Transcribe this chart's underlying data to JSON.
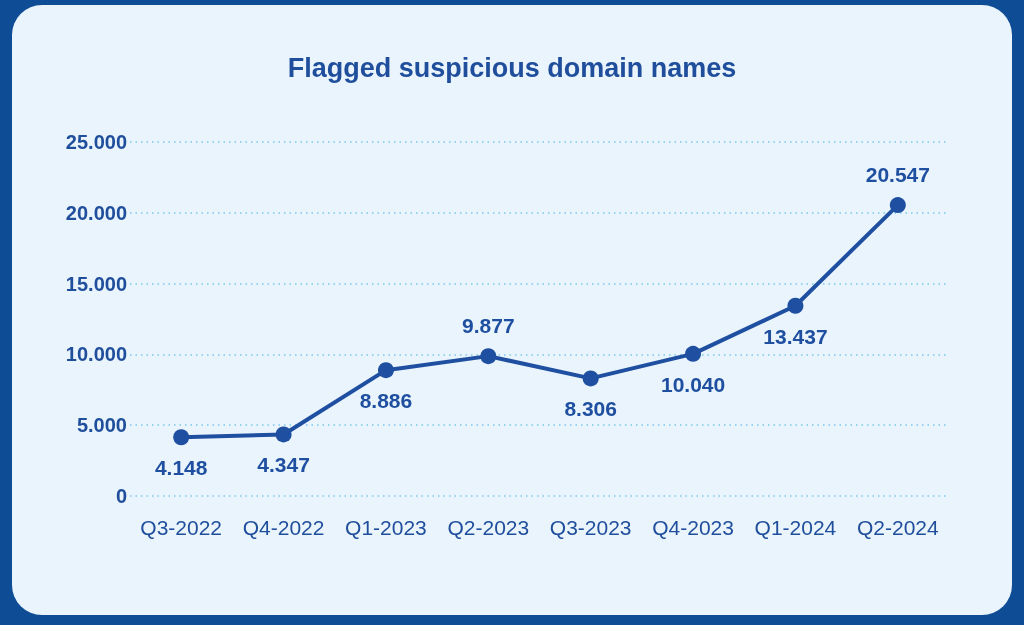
{
  "chart_data": {
    "type": "line",
    "title": "Flagged suspicious domain names",
    "categories": [
      "Q3-2022",
      "Q4-2022",
      "Q1-2023",
      "Q2-2023",
      "Q3-2023",
      "Q4-2023",
      "Q1-2024",
      "Q2-2024"
    ],
    "series": [
      {
        "color": "#1f4fa0",
        "values": [
          4148,
          4347,
          8886,
          9877,
          8306,
          10040,
          13437,
          20547
        ],
        "value_labels": [
          "4.148",
          "4.347",
          "8.886",
          "9.877",
          "8.306",
          "10.040",
          "13.437",
          "20.547"
        ]
      }
    ],
    "ylim": [
      0,
      25000
    ],
    "yticks": [
      0,
      {
        "value": 5000,
        "label": "5.000"
      },
      {
        "value": 10000,
        "label": "10.000"
      },
      {
        "value": 15000,
        "label": "15.000"
      },
      {
        "value": 20000,
        "label": "20.000"
      },
      {
        "value": 25000,
        "label": "25.000"
      }
    ],
    "grid": "y",
    "marker": "circle",
    "line_style": "solid"
  }
}
